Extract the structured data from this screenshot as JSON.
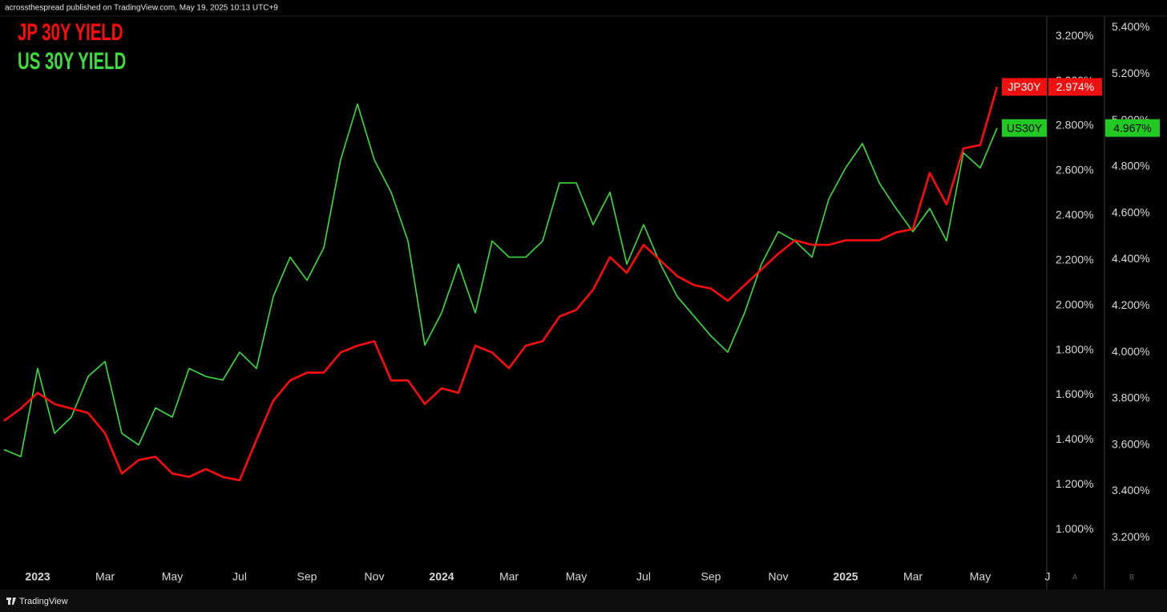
{
  "chart_data": {
    "type": "line",
    "attribution": "acrossthespread published on TradingView.com, May 19, 2025 10:13 UTC+9",
    "watermark": "TradingView",
    "y_axis_label": "A",
    "y2_axis_label": "B",
    "grid": false,
    "categories": [
      null,
      null,
      "2023",
      null,
      null,
      null,
      "Mar",
      null,
      null,
      null,
      "May",
      null,
      null,
      null,
      "Jul",
      null,
      null,
      null,
      "Sep",
      null,
      null,
      null,
      "Nov",
      null,
      null,
      null,
      "2024",
      null,
      null,
      null,
      "Mar",
      null,
      null,
      null,
      "May",
      null,
      null,
      null,
      "Jul",
      null,
      null,
      null,
      "Sep",
      null,
      null,
      null,
      "Nov",
      null,
      null,
      null,
      "2025",
      null,
      null,
      null,
      "Mar",
      null,
      null,
      null,
      "May",
      null,
      null,
      null,
      "J"
    ],
    "ylim": [
      0.84,
      3.29
    ],
    "yticks": [
      {
        "value": 1.0,
        "label": "1.000%"
      },
      {
        "value": 1.2,
        "label": "1.200%"
      },
      {
        "value": 1.4,
        "label": "1.400%"
      },
      {
        "value": 1.6,
        "label": "1.600%"
      },
      {
        "value": 1.8,
        "label": "1.800%"
      },
      {
        "value": 2.0,
        "label": "2.000%"
      },
      {
        "value": 2.2,
        "label": "2.200%"
      },
      {
        "value": 2.4,
        "label": "2.400%"
      },
      {
        "value": 2.6,
        "label": "2.600%"
      },
      {
        "value": 2.8,
        "label": "2.800%"
      },
      {
        "value": 3.0,
        "label": "3.000%"
      },
      {
        "value": 3.2,
        "label": "3.200%"
      }
    ],
    "y2lim": [
      3.08,
      5.45
    ],
    "y2ticks": [
      {
        "value": 3.2,
        "label": "3.200%"
      },
      {
        "value": 3.4,
        "label": "3.400%"
      },
      {
        "value": 3.6,
        "label": "3.600%"
      },
      {
        "value": 3.8,
        "label": "3.800%"
      },
      {
        "value": 4.0,
        "label": "4.000%"
      },
      {
        "value": 4.2,
        "label": "4.200%"
      },
      {
        "value": 4.4,
        "label": "4.400%"
      },
      {
        "value": 4.6,
        "label": "4.600%"
      },
      {
        "value": 4.8,
        "label": "4.800%"
      },
      {
        "value": 5.0,
        "label": "5.000%"
      },
      {
        "value": 5.2,
        "label": "5.200%"
      },
      {
        "value": 5.4,
        "label": "5.400%"
      }
    ],
    "series": [
      {
        "name": "JP 30Y YIELD",
        "short_name": "JP30Y",
        "color": "#ff0d0d",
        "axis": "y",
        "current_label": "2.974%",
        "values": [
          1.485,
          1.54,
          1.61,
          1.56,
          1.54,
          1.52,
          1.43,
          1.25,
          1.31,
          1.325,
          1.25,
          1.235,
          1.27,
          1.235,
          1.22,
          1.4,
          1.575,
          1.665,
          1.7,
          1.7,
          1.79,
          1.82,
          1.84,
          1.665,
          1.665,
          1.56,
          1.63,
          1.61,
          1.82,
          1.79,
          1.72,
          1.82,
          1.84,
          1.95,
          1.98,
          2.07,
          2.215,
          2.145,
          2.27,
          2.2,
          2.13,
          2.09,
          2.075,
          2.02,
          2.09,
          2.16,
          2.23,
          2.29,
          2.27,
          2.27,
          2.29,
          2.29,
          2.29,
          2.325,
          2.34,
          2.59,
          2.45,
          2.7,
          2.715,
          2.974,
          null,
          null,
          null
        ]
      },
      {
        "name": "US 30Y YIELD",
        "short_name": "US30Y",
        "color": "#3fdc3f",
        "axis": "y2",
        "current_label": "4.967%",
        "values": [
          3.58,
          3.55,
          3.93,
          3.65,
          3.72,
          3.895,
          3.96,
          3.65,
          3.6,
          3.76,
          3.72,
          3.93,
          3.895,
          3.88,
          4.0,
          3.93,
          4.24,
          4.41,
          4.31,
          4.45,
          4.83,
          5.07,
          4.83,
          4.69,
          4.48,
          4.03,
          4.17,
          4.38,
          4.17,
          4.48,
          4.41,
          4.41,
          4.48,
          4.73,
          4.73,
          4.55,
          4.69,
          4.38,
          4.55,
          4.38,
          4.24,
          4.155,
          4.07,
          4.0,
          4.17,
          4.38,
          4.52,
          4.48,
          4.41,
          4.66,
          4.795,
          4.9,
          4.73,
          4.62,
          4.52,
          4.62,
          4.48,
          4.86,
          4.795,
          4.967,
          null,
          null,
          null
        ]
      }
    ]
  }
}
